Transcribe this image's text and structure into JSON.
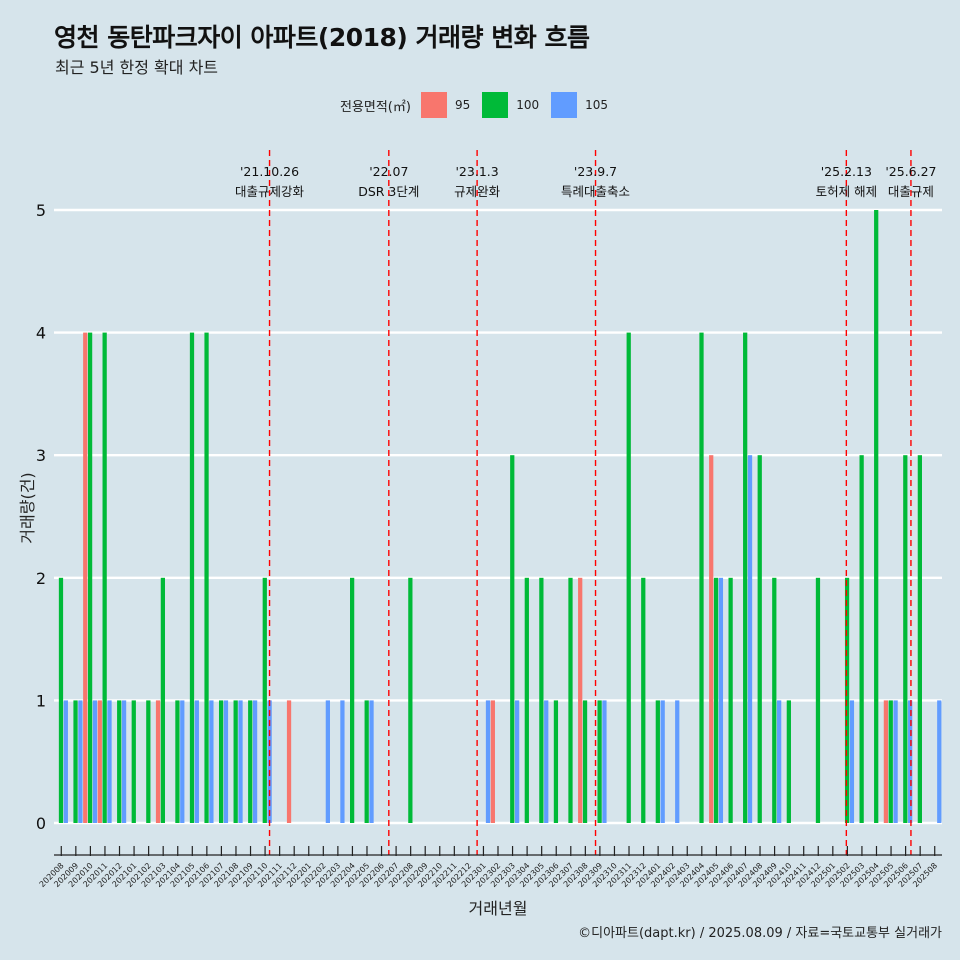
{
  "header": {
    "title": "영천 동탄파크자이 아파트(2018) 거래량 변화 흐름",
    "subtitle": "최근 5년 한정 확대 차트"
  },
  "legend": {
    "title": "전용면적(㎡)",
    "items": [
      {
        "label": "95",
        "color": "#f8766d"
      },
      {
        "label": "100",
        "color": "#00ba38"
      },
      {
        "label": "105",
        "color": "#619cff"
      }
    ]
  },
  "caption": "©디아파트(dapt.kr) / 2025.08.09 / 자료=국토교통부 실거래가",
  "chart_data": {
    "type": "bar",
    "title": "영천 동탄파크자이 아파트(2018) 거래량 변화 흐름",
    "subtitle": "최근 5년 한정 확대 차트",
    "xlabel": "거래년월",
    "ylabel": "거래량(건)",
    "ylim": [
      0,
      5
    ],
    "yticks": [
      0,
      1,
      2,
      3,
      4,
      5
    ],
    "grid": "horizontal",
    "legend_position": "top",
    "categories": [
      "202008",
      "202009",
      "202010",
      "202011",
      "202012",
      "202101",
      "202102",
      "202103",
      "202104",
      "202105",
      "202106",
      "202107",
      "202108",
      "202109",
      "202110",
      "202111",
      "202112",
      "202201",
      "202202",
      "202203",
      "202204",
      "202205",
      "202206",
      "202207",
      "202208",
      "202209",
      "202210",
      "202211",
      "202212",
      "202301",
      "202302",
      "202303",
      "202304",
      "202305",
      "202306",
      "202307",
      "202308",
      "202309",
      "202310",
      "202311",
      "202312",
      "202401",
      "202402",
      "202403",
      "202404",
      "202405",
      "202406",
      "202407",
      "202408",
      "202409",
      "202410",
      "202411",
      "202412",
      "202501",
      "202502",
      "202503",
      "202504",
      "202505",
      "202506",
      "202507",
      "202508"
    ],
    "series": [
      {
        "name": "95",
        "color": "#f8766d",
        "values": [
          0,
          0,
          4,
          1,
          0,
          0,
          0,
          1,
          0,
          0,
          0,
          0,
          0,
          0,
          0,
          0,
          1,
          0,
          0,
          0,
          0,
          0,
          0,
          0,
          0,
          0,
          0,
          0,
          0,
          0,
          1,
          0,
          0,
          0,
          0,
          0,
          2,
          0,
          0,
          0,
          0,
          0,
          0,
          0,
          0,
          3,
          0,
          0,
          0,
          0,
          0,
          0,
          0,
          0,
          0,
          0,
          0,
          1,
          0,
          0,
          0
        ]
      },
      {
        "name": "100",
        "color": "#00ba38",
        "values": [
          2,
          1,
          4,
          4,
          1,
          1,
          1,
          2,
          1,
          4,
          4,
          1,
          1,
          1,
          2,
          0,
          0,
          0,
          0,
          0,
          2,
          1,
          0,
          0,
          2,
          0,
          0,
          0,
          0,
          0,
          0,
          3,
          2,
          2,
          1,
          2,
          1,
          1,
          0,
          4,
          2,
          1,
          0,
          0,
          4,
          2,
          2,
          4,
          3,
          2,
          1,
          0,
          2,
          0,
          2,
          3,
          5,
          1,
          3,
          3,
          0
        ]
      },
      {
        "name": "105",
        "color": "#619cff",
        "values": [
          1,
          1,
          1,
          1,
          1,
          0,
          0,
          0,
          1,
          1,
          1,
          1,
          1,
          1,
          1,
          0,
          0,
          0,
          1,
          1,
          0,
          1,
          0,
          0,
          0,
          0,
          0,
          0,
          0,
          1,
          0,
          1,
          0,
          1,
          0,
          0,
          0,
          1,
          0,
          0,
          0,
          1,
          1,
          0,
          0,
          2,
          0,
          3,
          0,
          1,
          0,
          0,
          0,
          0,
          1,
          0,
          0,
          1,
          1,
          0,
          1
        ]
      }
    ],
    "events": [
      {
        "date": "'21.10.26",
        "label": "대출규제강화",
        "month": "202110",
        "day": 26
      },
      {
        "date": "'22.07",
        "label": "DSR 3단계",
        "month": "202207",
        "day": 1
      },
      {
        "date": "'23.1.3",
        "label": "규제완화",
        "month": "202301",
        "day": 3
      },
      {
        "date": "'23.9.7",
        "label": "특례대출축소",
        "month": "202309",
        "day": 7
      },
      {
        "date": "'25.2.13",
        "label": "토허제 해제",
        "month": "202502",
        "day": 13
      },
      {
        "date": "'25.6.27",
        "label": "대출규제",
        "month": "202506",
        "day": 27
      }
    ]
  }
}
